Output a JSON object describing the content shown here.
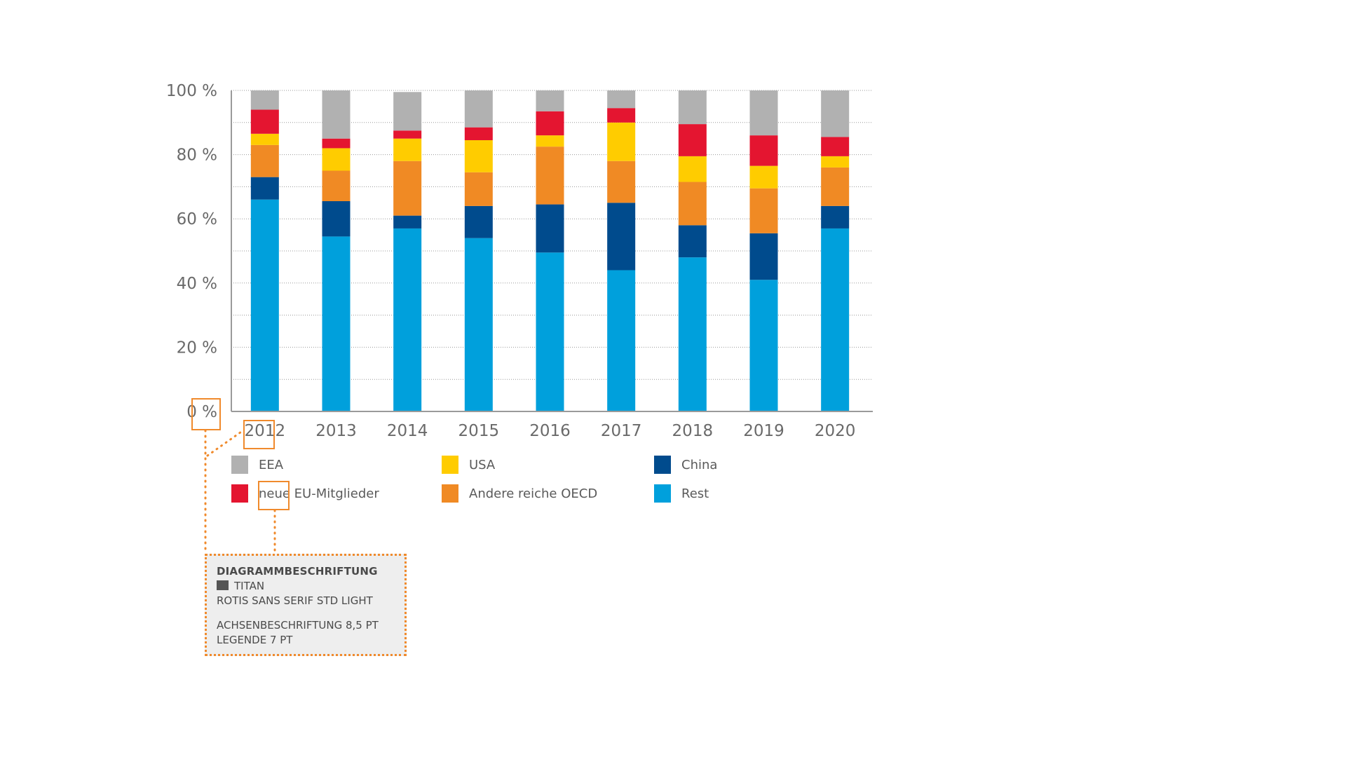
{
  "chart_data": {
    "type": "bar",
    "stacked": true,
    "categories": [
      "2012",
      "2013",
      "2014",
      "2015",
      "2016",
      "2017",
      "2018",
      "2019",
      "2020"
    ],
    "y_ticks": [
      "0 %",
      "20 %",
      "40 %",
      "60 %",
      "80 %",
      "100 %"
    ],
    "ylim": [
      0,
      100
    ],
    "grid": "horizontal dotted",
    "series": [
      {
        "name": "Rest",
        "color": "#00a0dc",
        "values": [
          66,
          54.5,
          57,
          54,
          49.5,
          44,
          48,
          41,
          57
        ]
      },
      {
        "name": "China",
        "color": "#004b8d",
        "values": [
          7,
          11,
          4,
          10,
          15,
          21,
          10,
          14.5,
          7
        ]
      },
      {
        "name": "Andere reiche OECD",
        "color": "#f08a24",
        "values": [
          10,
          9.5,
          17,
          10.5,
          18,
          13,
          13.5,
          14,
          12
        ]
      },
      {
        "name": "USA",
        "color": "#ffcc00",
        "values": [
          3.5,
          7,
          7,
          10,
          3.5,
          12,
          8,
          7,
          3.5
        ]
      },
      {
        "name": "neue EU-Mitglieder",
        "color": "#e41530",
        "values": [
          7.5,
          3,
          2.5,
          4,
          7.5,
          4.5,
          10,
          9.5,
          6
        ]
      },
      {
        "name": "EEA",
        "color": "#b1b1b1",
        "values": [
          6,
          15,
          12,
          11.5,
          6.5,
          5.5,
          10.5,
          14,
          14.5
        ]
      }
    ]
  },
  "legend": [
    {
      "label": "EEA",
      "color": "#b1b1b1"
    },
    {
      "label": "USA",
      "color": "#ffcc00"
    },
    {
      "label": "China",
      "color": "#004b8d"
    },
    {
      "label": "neue EU-Mitglieder",
      "color": "#e41530"
    },
    {
      "label": "Andere reiche OECD",
      "color": "#f08a24"
    },
    {
      "label": "Rest",
      "color": "#00a0dc"
    }
  ],
  "spec": {
    "title": "DIAGRAMMBESCHRIFTUNG",
    "color_name": "TITAN",
    "font": "ROTIS SANS SERIF STD LIGHT",
    "axis": "ACHSENBESCHRIFTUNG 8,5 PT",
    "legend": "LEGENDE 7 PT"
  },
  "accent_color": "#f08a2c"
}
